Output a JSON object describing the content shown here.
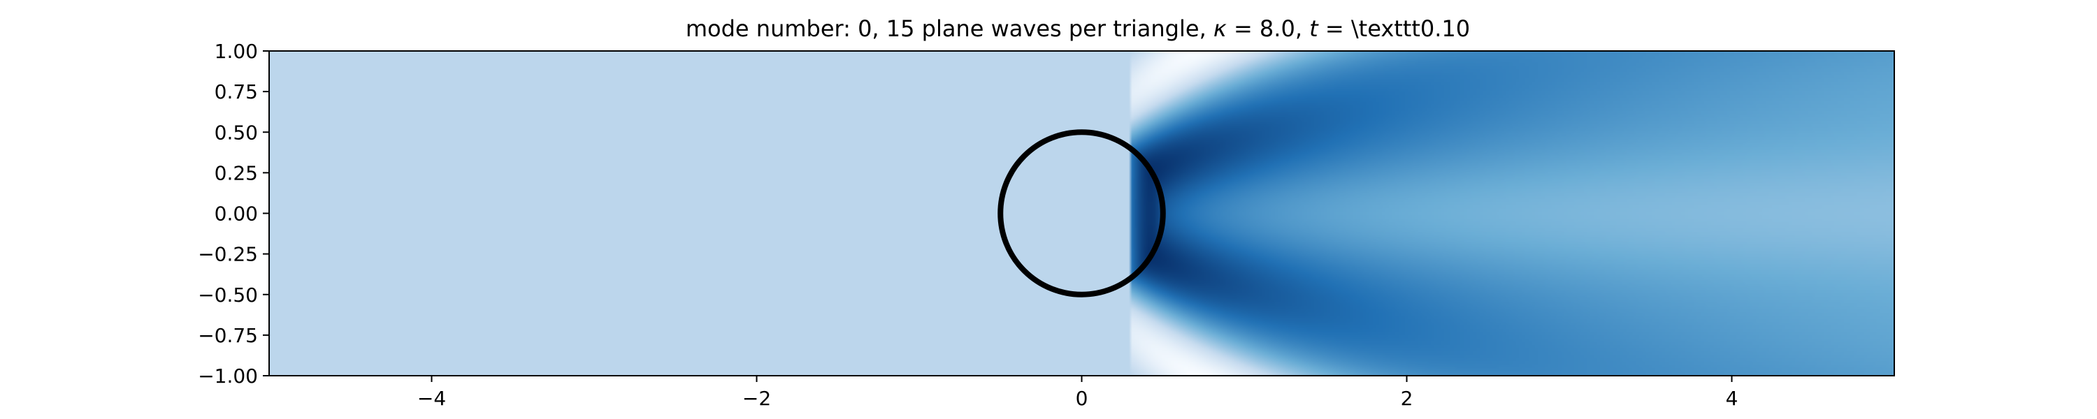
{
  "chart_data": {
    "type": "heatmap",
    "title": "mode number: 0, 15 plane waves per triangle, $\\kappa = 8.0$, $t = $ \\texttt0.10",
    "title_display": {
      "prefix": "mode number: 0, 15 plane waves per triangle, ",
      "kappa_symbol": "κ",
      "kappa_rest": " = 8.0, ",
      "t_symbol": "t",
      "t_rest": " =  \\texttt0.10"
    },
    "xlabel": "",
    "ylabel": "",
    "xlim": [
      -5,
      5
    ],
    "ylim": [
      -1,
      1
    ],
    "x_ticks": [
      -4,
      -2,
      0,
      2,
      4
    ],
    "x_tick_labels": [
      "−4",
      "−2",
      "0",
      "2",
      "4"
    ],
    "y_ticks": [
      1.0,
      0.75,
      0.5,
      0.25,
      0.0,
      -0.25,
      -0.5,
      -0.75,
      -1.0
    ],
    "y_tick_labels": [
      "1.00",
      "0.75",
      "0.50",
      "0.25",
      "0.00",
      "−0.25",
      "−0.50",
      "−0.75",
      "−1.00"
    ],
    "colormap": "Blues",
    "colormap_stops": [
      "#f7fbff",
      "#c6dbef",
      "#6baed6",
      "#2171b5",
      "#08306b"
    ],
    "grid": false,
    "legend": "none",
    "obstacle": {
      "shape": "circle",
      "center": [
        0,
        0
      ],
      "radius": 0.5,
      "stroke_color": "#000000"
    },
    "wave": {
      "kappa": 8.0,
      "mode_number": 0,
      "t": 0.1
    }
  }
}
